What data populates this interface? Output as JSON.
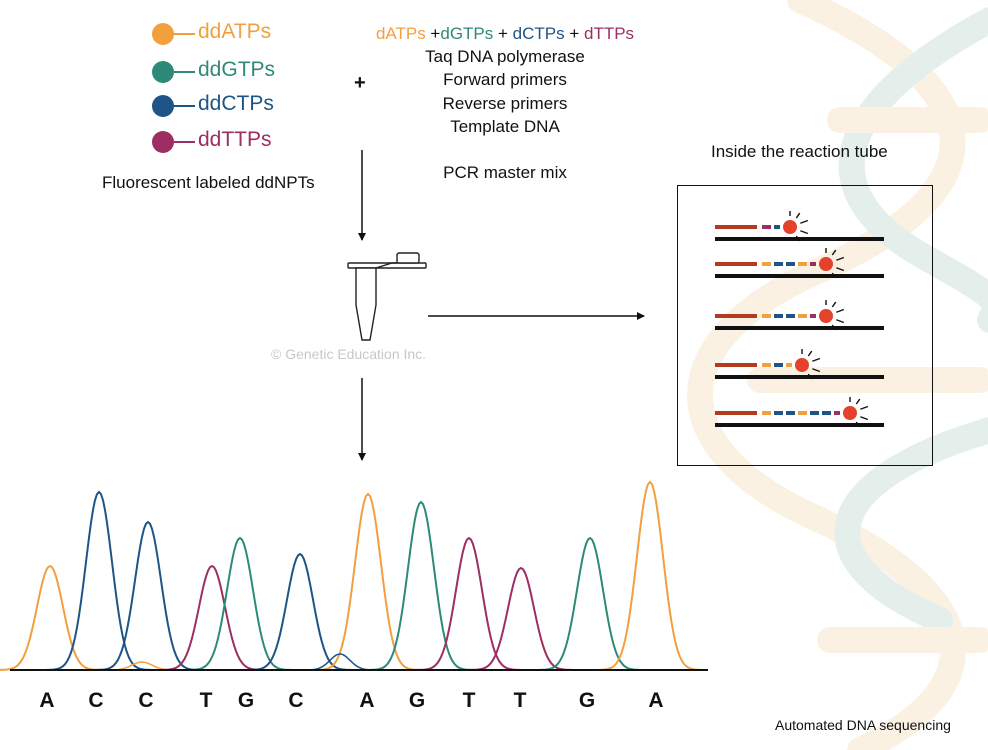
{
  "colors": {
    "A": "#f2a03d",
    "G": "#2e8a78",
    "C": "#1f5487",
    "T": "#9c2e63",
    "primer": "#b53a22",
    "fluor": "#e4422b"
  },
  "legend": [
    {
      "label": "ddATPs",
      "base": "A",
      "icon": "orange-dot-icon"
    },
    {
      "label": "ddGTPs",
      "base": "G",
      "icon": "teal-dot-icon"
    },
    {
      "label": "ddCTPs",
      "base": "C",
      "icon": "blue-dot-icon"
    },
    {
      "label": "ddTTPs",
      "base": "T",
      "icon": "magenta-dot-icon"
    }
  ],
  "ddnpt_caption": "Fluorescent labeled ddNPTs",
  "plus": "+",
  "mix": {
    "dntps": [
      {
        "text": "dATPs",
        "base": "A"
      },
      {
        "text": " +",
        "base": ""
      },
      {
        "text": "dGTPs",
        "base": "G"
      },
      {
        "text": " + ",
        "base": ""
      },
      {
        "text": "dCTPs",
        "base": "C"
      },
      {
        "text": " + ",
        "base": ""
      },
      {
        "text": "dTTPs",
        "base": "T"
      }
    ],
    "lines": [
      "Taq DNA polymerase",
      "Forward primers",
      "Reverse primers",
      "Template DNA"
    ],
    "title": "PCR master mix"
  },
  "tube_caption": "Inside the reaction tube",
  "watermark": "© Genetic Education Inc.",
  "fragments": [
    {
      "segments": [
        "T"
      ],
      "terminator": "C"
    },
    {
      "segments": [
        "A",
        "C",
        "C",
        "A"
      ],
      "terminator": "T"
    },
    {
      "segments": [
        "A",
        "C",
        "C",
        "A"
      ],
      "terminator": "T"
    },
    {
      "segments": [
        "A",
        "C"
      ],
      "terminator": "A"
    },
    {
      "segments": [
        "A",
        "C",
        "C",
        "A",
        "C",
        "C"
      ],
      "terminator": "T"
    }
  ],
  "electropherogram": {
    "bases": [
      "A",
      "C",
      "C",
      "T",
      "G",
      "C",
      "A",
      "G",
      "T",
      "T",
      "G",
      "A"
    ],
    "peaks": [
      {
        "base": "A",
        "height": 0.52
      },
      {
        "base": "C",
        "height": 0.89
      },
      {
        "base": "C",
        "height": 0.74
      },
      {
        "base": "T",
        "height": 0.52
      },
      {
        "base": "G",
        "height": 0.66
      },
      {
        "base": "C",
        "height": 0.58
      },
      {
        "base": "A",
        "height": 0.88
      },
      {
        "base": "G",
        "height": 0.84
      },
      {
        "base": "T",
        "height": 0.66
      },
      {
        "base": "T",
        "height": 0.51
      },
      {
        "base": "G",
        "height": 0.66
      },
      {
        "base": "A",
        "height": 0.94
      }
    ]
  },
  "footer_caption": "Automated DNA sequencing"
}
